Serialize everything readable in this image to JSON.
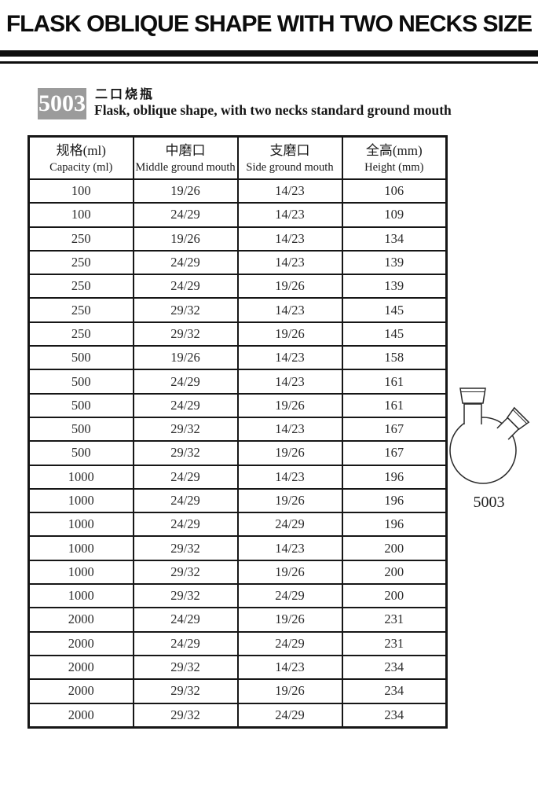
{
  "page": {
    "title": "FLASK OBLIQUE SHAPE WITH TWO NECKS SIZE"
  },
  "product": {
    "code": "5003",
    "name_zh": "二口烧瓶",
    "name_en": "Flask, oblique shape, with two necks standard ground mouth"
  },
  "table": {
    "columns": [
      {
        "zh": "规格(ml)",
        "en": "Capacity (ml)"
      },
      {
        "zh": "中磨口",
        "en": "Middle ground mouth"
      },
      {
        "zh": "支磨口",
        "en": "Side ground mouth"
      },
      {
        "zh": "全高(mm)",
        "en": "Height (mm)"
      }
    ],
    "rows": [
      [
        "100",
        "19/26",
        "14/23",
        "106"
      ],
      [
        "100",
        "24/29",
        "14/23",
        "109"
      ],
      [
        "250",
        "19/26",
        "14/23",
        "134"
      ],
      [
        "250",
        "24/29",
        "14/23",
        "139"
      ],
      [
        "250",
        "24/29",
        "19/26",
        "139"
      ],
      [
        "250",
        "29/32",
        "14/23",
        "145"
      ],
      [
        "250",
        "29/32",
        "19/26",
        "145"
      ],
      [
        "500",
        "19/26",
        "14/23",
        "158"
      ],
      [
        "500",
        "24/29",
        "14/23",
        "161"
      ],
      [
        "500",
        "24/29",
        "19/26",
        "161"
      ],
      [
        "500",
        "29/32",
        "14/23",
        "167"
      ],
      [
        "500",
        "29/32",
        "19/26",
        "167"
      ],
      [
        "1000",
        "24/29",
        "14/23",
        "196"
      ],
      [
        "1000",
        "24/29",
        "19/26",
        "196"
      ],
      [
        "1000",
        "24/29",
        "24/29",
        "196"
      ],
      [
        "1000",
        "29/32",
        "14/23",
        "200"
      ],
      [
        "1000",
        "29/32",
        "19/26",
        "200"
      ],
      [
        "1000",
        "29/32",
        "24/29",
        "200"
      ],
      [
        "2000",
        "24/29",
        "19/26",
        "231"
      ],
      [
        "2000",
        "24/29",
        "24/29",
        "231"
      ],
      [
        "2000",
        "29/32",
        "14/23",
        "234"
      ],
      [
        "2000",
        "29/32",
        "19/26",
        "234"
      ],
      [
        "2000",
        "29/32",
        "24/29",
        "234"
      ]
    ]
  },
  "figure": {
    "label": "5003"
  },
  "colors": {
    "banner_bar": "#0d0d0d",
    "code_box_bg": "#9b9b9b",
    "code_box_text": "#ffffff",
    "table_border": "#161616",
    "text": "#2b2b2b"
  }
}
